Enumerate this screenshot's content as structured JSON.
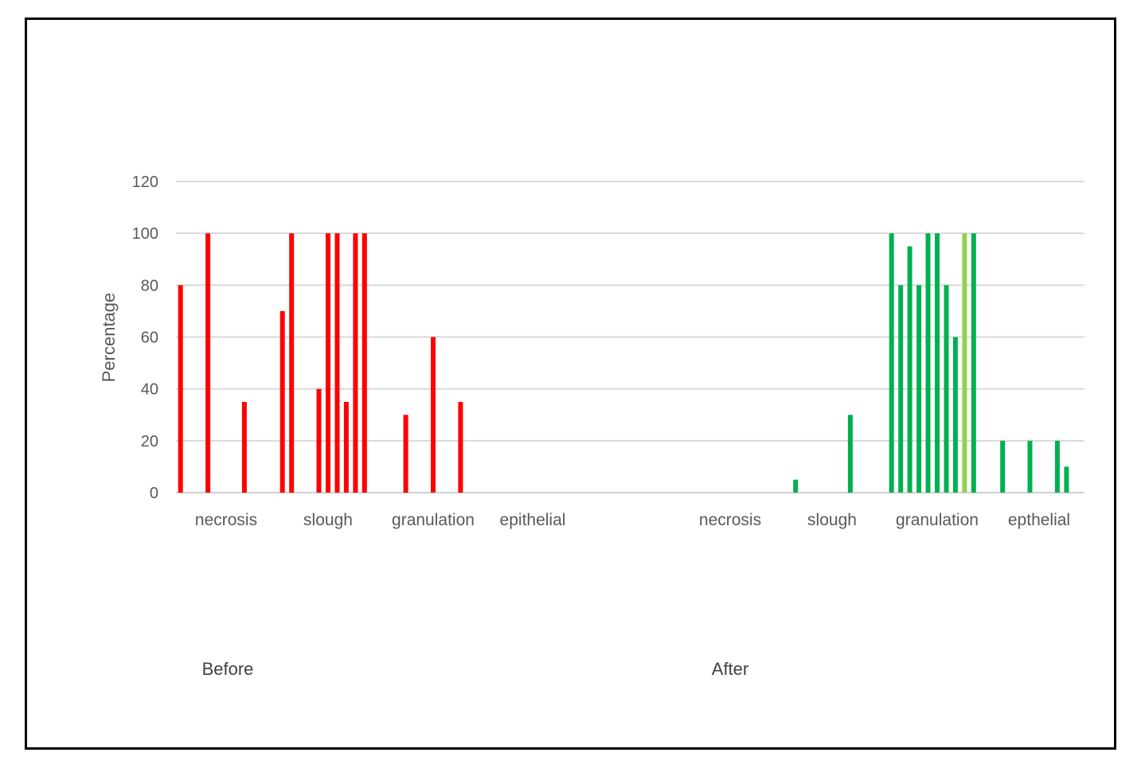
{
  "chart_data": {
    "type": "bar",
    "ylabel": "Percentage",
    "ylim": [
      0,
      120
    ],
    "yticks": [
      0,
      20,
      40,
      60,
      80,
      100,
      120
    ],
    "grid": true,
    "groups": [
      {
        "label": "Before",
        "color": "#ff0000",
        "categories": [
          {
            "label": "necrosis",
            "values": [
              80,
              0,
              0,
              100,
              0,
              0,
              0,
              35,
              0,
              0,
              0
            ]
          },
          {
            "label": "slough",
            "values": [
              70,
              100,
              0,
              0,
              40,
              100,
              100,
              35,
              100,
              100,
              0
            ]
          },
          {
            "label": "granulation",
            "values": [
              0,
              0,
              30,
              0,
              0,
              60,
              0,
              0,
              35,
              0,
              0
            ]
          },
          {
            "label": "epithelial",
            "values": [
              0,
              0,
              0,
              0,
              0,
              0,
              0,
              0,
              0,
              0,
              0
            ]
          }
        ]
      },
      {
        "label": "After",
        "color": "#00b050",
        "categories": [
          {
            "label": "necrosis",
            "values": [
              0,
              0,
              0,
              0,
              0,
              0,
              0,
              0,
              0,
              0,
              0
            ]
          },
          {
            "label": "slough",
            "values": [
              0,
              5,
              0,
              0,
              0,
              0,
              0,
              30,
              0,
              0,
              0
            ]
          },
          {
            "label": "granulation",
            "values": [
              100,
              80,
              95,
              80,
              100,
              100,
              80,
              60,
              100,
              100,
              0
            ]
          },
          {
            "label": "epthelial",
            "values": [
              0,
              20,
              0,
              0,
              20,
              0,
              0,
              20,
              10,
              0,
              0
            ]
          }
        ]
      }
    ],
    "highlight_color": "#92d050"
  }
}
